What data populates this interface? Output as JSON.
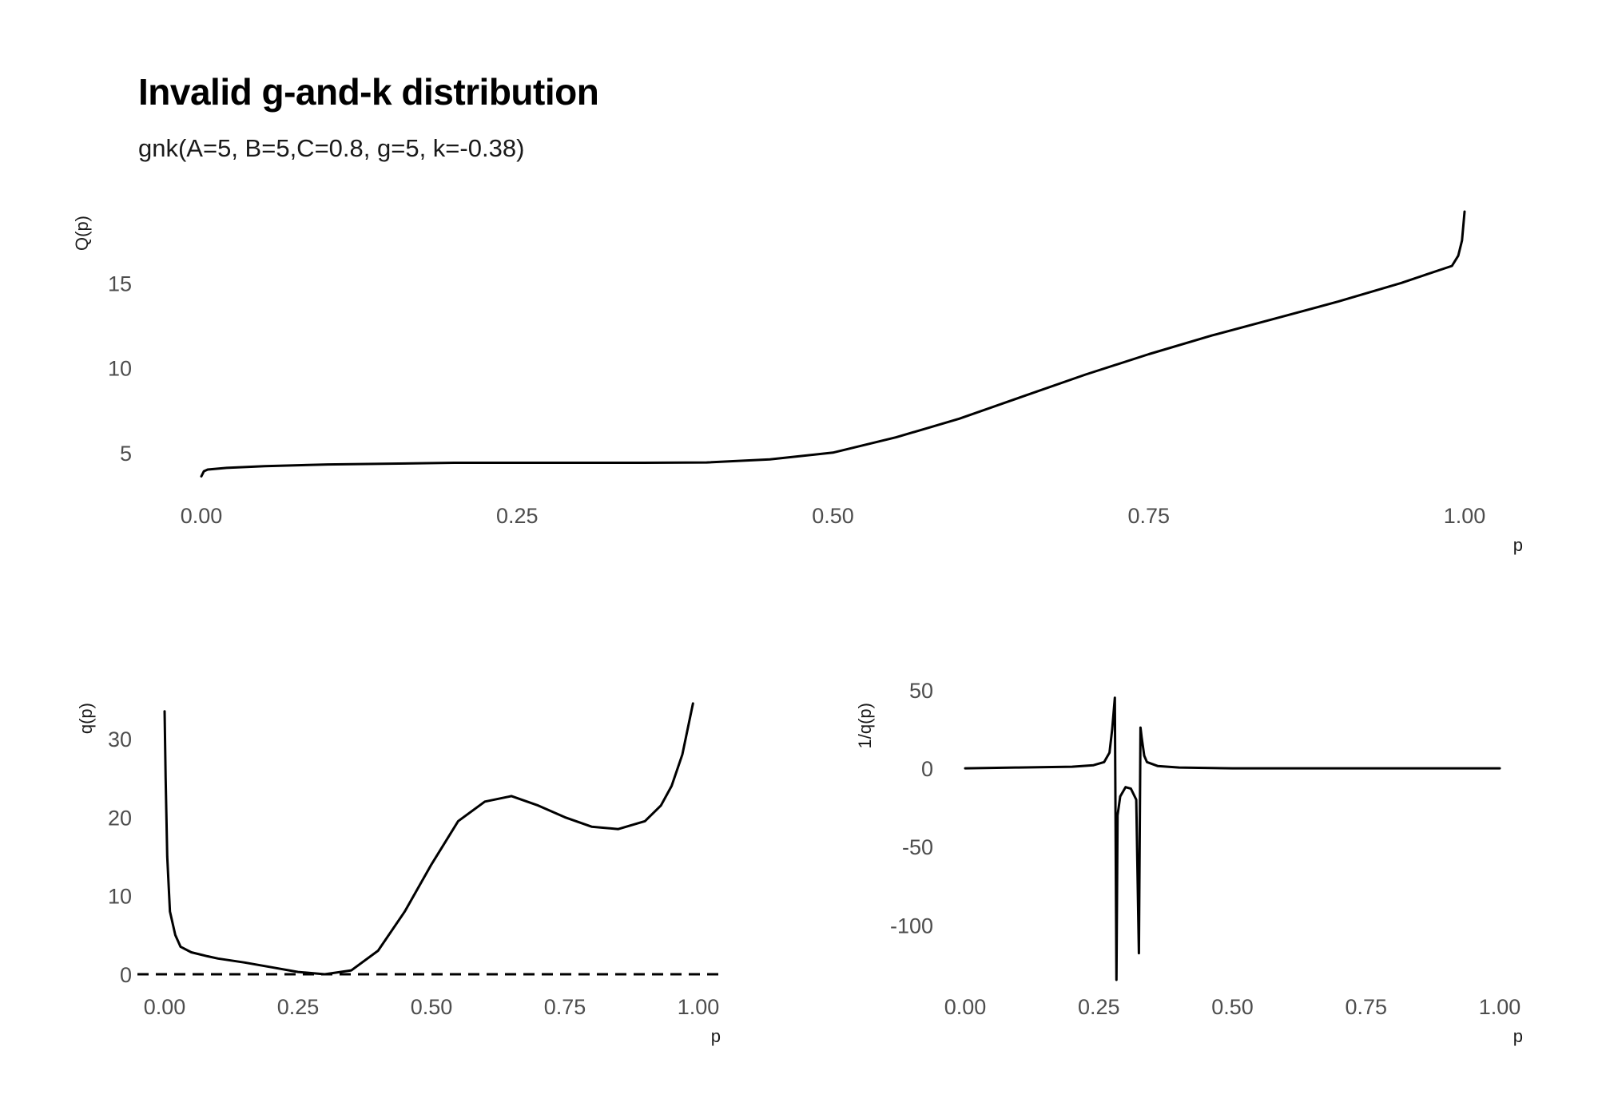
{
  "title": "Invalid g-and-k distribution",
  "subtitle": "gnk(A=5, B=5,C=0.8, g=5, k=-0.38)",
  "colors": {
    "line": "#000000",
    "tick_text": "#4d4d4d"
  },
  "chart_data": [
    {
      "type": "line",
      "name": "quantile-panel",
      "xlabel": "p",
      "ylabel": "Q(p)",
      "xlim": [
        0,
        1
      ],
      "ylim": [
        3.2,
        19.2
      ],
      "xticks": [
        0,
        0.25,
        0.5,
        0.75,
        1
      ],
      "xtick_labels": [
        "0.00",
        "0.25",
        "0.50",
        "0.75",
        "1.00"
      ],
      "yticks": [
        5,
        10,
        15
      ],
      "ytick_labels": [
        "5",
        "10",
        "15"
      ],
      "grid": false,
      "series": [
        {
          "x": [
            0.0,
            0.002,
            0.005,
            0.02,
            0.05,
            0.1,
            0.15,
            0.2,
            0.25,
            0.3,
            0.35,
            0.4,
            0.45,
            0.5,
            0.55,
            0.6,
            0.65,
            0.7,
            0.75,
            0.8,
            0.85,
            0.9,
            0.95,
            0.97,
            0.99,
            0.995,
            0.998,
            1.0
          ],
          "y": [
            3.6,
            3.9,
            4.0,
            4.1,
            4.2,
            4.3,
            4.35,
            4.4,
            4.4,
            4.4,
            4.4,
            4.42,
            4.6,
            5.0,
            5.9,
            7.0,
            8.3,
            9.6,
            10.8,
            11.9,
            12.9,
            13.9,
            15.0,
            15.5,
            16.0,
            16.6,
            17.5,
            19.2
          ]
        }
      ]
    },
    {
      "type": "line",
      "name": "density-panel",
      "xlabel": "p",
      "ylabel": "q(p)",
      "xlim": [
        0,
        1
      ],
      "ylim": [
        0,
        35
      ],
      "xticks": [
        0,
        0.25,
        0.5,
        0.75,
        1
      ],
      "xtick_labels": [
        "0.00",
        "0.25",
        "0.50",
        "0.75",
        "1.00"
      ],
      "yticks": [
        0,
        10,
        20,
        30
      ],
      "ytick_labels": [
        "0",
        "10",
        "20",
        "30"
      ],
      "reference_line": {
        "y": 0,
        "style": "dashed"
      },
      "grid": false,
      "series": [
        {
          "x": [
            0.0,
            0.002,
            0.005,
            0.01,
            0.02,
            0.03,
            0.05,
            0.08,
            0.1,
            0.15,
            0.2,
            0.25,
            0.3,
            0.35,
            0.4,
            0.45,
            0.5,
            0.55,
            0.6,
            0.65,
            0.7,
            0.75,
            0.8,
            0.85,
            0.9,
            0.93,
            0.95,
            0.97,
            0.99
          ],
          "y": [
            33.5,
            25.0,
            15.0,
            8.0,
            5.0,
            3.5,
            2.8,
            2.3,
            2.0,
            1.5,
            0.9,
            0.3,
            0.0,
            0.5,
            3.0,
            8.0,
            14.0,
            19.5,
            22.0,
            22.7,
            21.5,
            20.0,
            18.8,
            18.5,
            19.5,
            21.5,
            24.0,
            28.0,
            34.5
          ]
        }
      ]
    },
    {
      "type": "line",
      "name": "density-reciprocal-panel",
      "xlabel": "p",
      "ylabel": "1/q(p)",
      "xlim": [
        0,
        1
      ],
      "ylim": [
        -135,
        50
      ],
      "xticks": [
        0,
        0.25,
        0.5,
        0.75,
        1
      ],
      "xtick_labels": [
        "0.00",
        "0.25",
        "0.50",
        "0.75",
        "1.00"
      ],
      "yticks": [
        50,
        0,
        -50,
        -100
      ],
      "ytick_labels": [
        "50",
        "0",
        "-50",
        "-100"
      ],
      "grid": false,
      "series": [
        {
          "x": [
            0.0,
            0.1,
            0.2,
            0.24,
            0.26,
            0.27,
            0.275,
            0.28,
            0.283,
            0.285,
            0.29,
            0.3,
            0.31,
            0.32,
            0.325,
            0.328,
            0.33,
            0.335,
            0.34,
            0.36,
            0.4,
            0.5,
            0.75,
            1.0
          ],
          "y": [
            0.0,
            0.5,
            1.0,
            2.0,
            4.0,
            10.0,
            25.0,
            45.0,
            -135.0,
            -30.0,
            -18.0,
            -12.0,
            -13.0,
            -20.0,
            -118.0,
            26.0,
            20.0,
            8.0,
            4.0,
            1.5,
            0.5,
            0.0,
            0.0,
            0.0
          ]
        }
      ]
    }
  ]
}
